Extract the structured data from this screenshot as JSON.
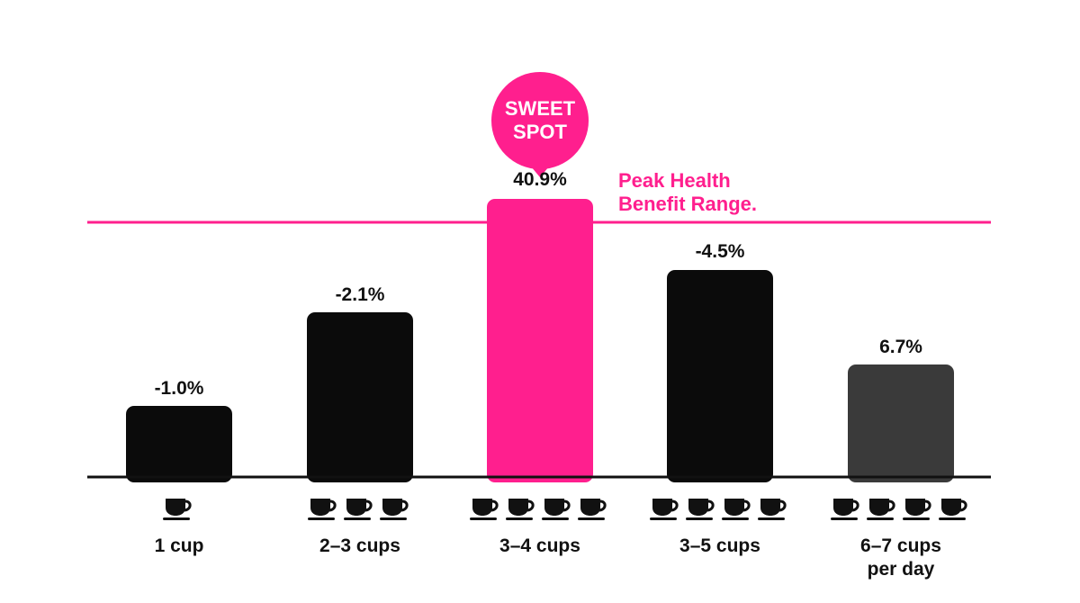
{
  "chart_data": {
    "type": "bar",
    "categories": [
      "1 cup",
      "2–3 cups",
      "3–4 cups",
      "3–5 cups",
      "6–7 cups\nper day"
    ],
    "values": [
      -1.0,
      -2.1,
      40.9,
      -4.5,
      6.7
    ],
    "value_labels": [
      "-1.0%",
      "-2.1%",
      "40.9%",
      "-4.5%",
      "6.7%"
    ],
    "cup_icon_counts": [
      1,
      3,
      4,
      4,
      4
    ],
    "bar_colors": [
      "#0b0b0b",
      "#0b0b0b",
      "#ff1f8e",
      "#0b0b0b",
      "#3a3a3a"
    ],
    "highlight_index": 2,
    "annotation": {
      "callout": "SWEET\nSPOT",
      "reference_line_label": "Peak Health\nBenefit Range."
    },
    "title": "",
    "xlabel": "",
    "ylabel": "",
    "grid": false,
    "legend": "none"
  },
  "colors": {
    "accent": "#ff1f8e",
    "bar_dark": "#0b0b0b",
    "bar_gray": "#3a3a3a",
    "axis": "#111111"
  },
  "icons": {
    "cup": "coffee-cup-icon"
  }
}
